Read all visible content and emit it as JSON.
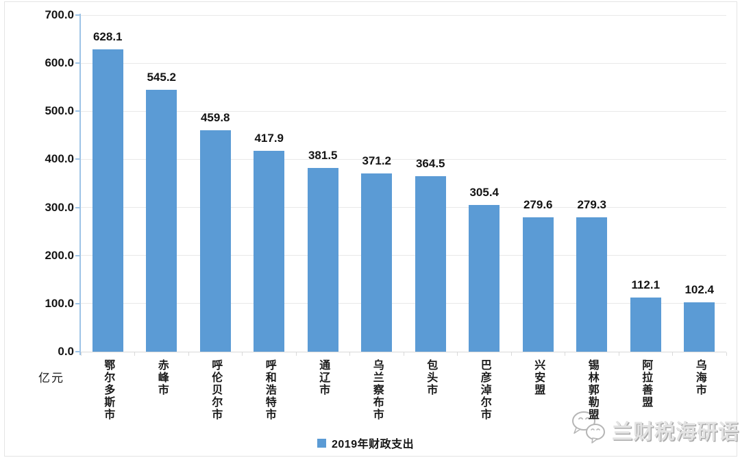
{
  "chart_data": {
    "type": "bar",
    "title": "",
    "categories": [
      "鄂尔多斯市",
      "赤峰市",
      "呼伦贝尔市",
      "呼和浩特市",
      "通辽市",
      "乌兰察布市",
      "包头市",
      "巴彦淖尔市",
      "兴安盟",
      "锡林郭勒盟",
      "阿拉善盟",
      "乌海市"
    ],
    "series": [
      {
        "name": "2019年财政支出",
        "values": [
          628.1,
          545.2,
          459.8,
          417.9,
          381.5,
          371.2,
          364.5,
          305.4,
          279.6,
          279.3,
          112.1,
          102.4
        ],
        "color": "#5b9bd5"
      }
    ],
    "xlabel": "",
    "ylabel": "亿元",
    "ylim": [
      0,
      700
    ],
    "y_tick_step": 100,
    "y_tick_decimals": 1,
    "grid": true,
    "legend_position": "bottom",
    "value_labels_shown": true
  },
  "colors": {
    "bar": "#5b9bd5",
    "axis": "#9dc3e6",
    "gridline": "#e8e8e8",
    "baseline": "#d9d9d9"
  },
  "legend": {
    "label": "2019年财政支出"
  },
  "unit": {
    "label": "亿元"
  },
  "watermark": {
    "icon": "wechat-icon",
    "text": "兰财税海研语"
  }
}
